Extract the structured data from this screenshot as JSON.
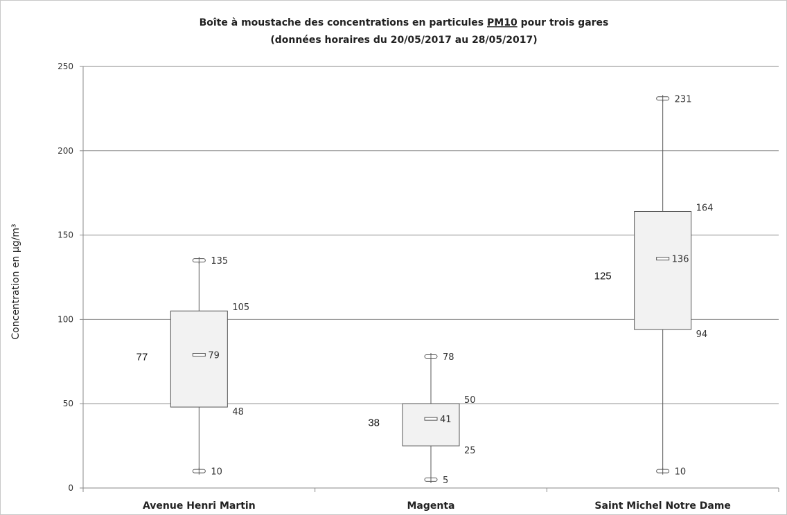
{
  "chart_data": {
    "type": "box",
    "title_line1": "Boîte à moustache des concentrations en particules PM10 pour trois gares",
    "title_line1_prefix": "Boîte à moustache des concentrations en particules ",
    "title_line1_underlined": "PM10",
    "title_line1_suffix": " pour trois gares",
    "title_line2": "(données horaires du 20/05/2017 au 28/05/2017)",
    "ylabel": "Concentration en µg/m³",
    "xlabel": "",
    "ylim": [
      0,
      250
    ],
    "yticks": [
      "0",
      "50",
      "100",
      "150",
      "200",
      "250"
    ],
    "grid": true,
    "categories": [
      "Avenue Henri Martin",
      "Magenta",
      "Saint Michel Notre Dame"
    ],
    "boxes": [
      {
        "min": 10,
        "q1": 48,
        "median": 79,
        "q3": 105,
        "max": 135,
        "mean": 77,
        "labels": {
          "min": "10",
          "q1": "48",
          "median": "79",
          "q3": "105",
          "max": "135",
          "mean": "77"
        }
      },
      {
        "min": 5,
        "q1": 25,
        "median": 41,
        "q3": 50,
        "max": 78,
        "mean": 38,
        "labels": {
          "min": "5",
          "q1": "25",
          "median": "41",
          "q3": "50",
          "max": "78",
          "mean": "38"
        }
      },
      {
        "min": 10,
        "q1": 94,
        "median": 136,
        "q3": 164,
        "max": 231,
        "mean": 125,
        "labels": {
          "min": "10",
          "q1": "94",
          "median": "136",
          "q3": "164",
          "max": "231",
          "mean": "125"
        }
      }
    ]
  }
}
